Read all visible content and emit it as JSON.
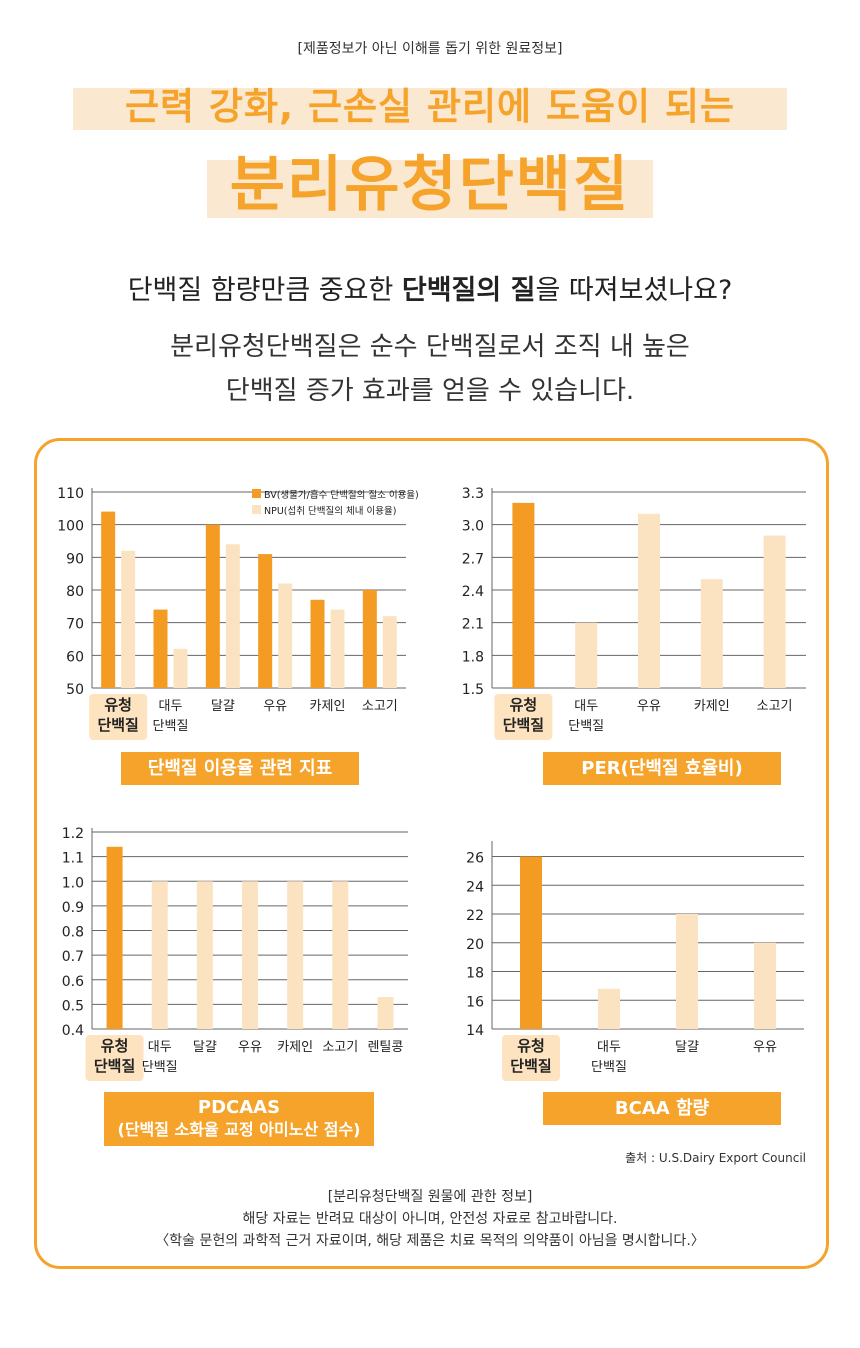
{
  "notice": "[제품정보가 아닌 이해를 돕기 위한 원료정보]",
  "title_line1": "근력 강화, 근손실 관리에 도움이 되는",
  "title_line2": "분리유청단백질",
  "question_pre": "단백질 함량만큼 중요한 ",
  "question_bold": "단백질의 질",
  "question_post": "을 따져보셨나요?",
  "desc_line1": "분리유청단백질은 순수 단백질로서 조직 내 높은",
  "desc_line2": "단백질 증가 효과를 얻을 수 있습니다.",
  "colors": {
    "accent": "#f5a32a",
    "bar_dark": "#f39b22",
    "bar_light": "#fbe3c2",
    "highlight": "#fde3bf",
    "grid": "#666666"
  },
  "source": "출처 : U.S.Dairy Export Council",
  "footer": {
    "line1": "[분리유청단백질 원물에 관한 정보]",
    "line2": "해당 자료는 반려묘 대상이 아니며, 안전성 자료로 참고바랍니다.",
    "line3": "〈학술 문헌의 과학적 근거 자료이며, 해당 제품은 치료 목적의 의약품이 아님을 명시합니다.〉"
  },
  "chart_data": [
    {
      "type": "bar",
      "title": "단백질 이용율 관련 지표",
      "categories": [
        [
          "유청",
          "단백질"
        ],
        [
          "대두",
          "단백질"
        ],
        [
          "달걀"
        ],
        [
          "우유"
        ],
        [
          "카제인"
        ],
        [
          "소고기"
        ]
      ],
      "series": [
        {
          "name": "BV(생물가/흡수 단백질의 질소 이용율)",
          "values": [
            104,
            74,
            100,
            91,
            77,
            80
          ]
        },
        {
          "name": "NPU(섭취 단백질의 체내 이용율)",
          "values": [
            92,
            62,
            94,
            82,
            74,
            72
          ]
        }
      ],
      "ylim": [
        50,
        110
      ],
      "yticks": [
        "110",
        "100",
        "90",
        "80",
        "70",
        "60",
        "50"
      ],
      "ytick_values": [
        110,
        100,
        90,
        80,
        70,
        60,
        50
      ],
      "legend": "top-right",
      "highlight_index": 0
    },
    {
      "type": "bar",
      "title": "PER(단백질 효율비)",
      "categories": [
        [
          "유청",
          "단백질"
        ],
        [
          "대두",
          "단백질"
        ],
        [
          "우유"
        ],
        [
          "카제인"
        ],
        [
          "소고기"
        ]
      ],
      "values": [
        3.2,
        2.1,
        3.1,
        2.5,
        2.9
      ],
      "ylim": [
        1.5,
        3.3
      ],
      "yticks": [
        "3.3",
        "3.0",
        "2.7",
        "2.4",
        "2.1",
        "1.8",
        "1.5"
      ],
      "ytick_values": [
        3.3,
        3.0,
        2.7,
        2.4,
        2.1,
        1.8,
        1.5
      ],
      "highlight_index": 0
    },
    {
      "type": "bar",
      "title": "PDCAAS",
      "subtitle": "(단백질 소화율 교정 아미노산 점수)",
      "categories": [
        [
          "유청",
          "단백질"
        ],
        [
          "대두",
          "단백질"
        ],
        [
          "달걀"
        ],
        [
          "우유"
        ],
        [
          "카제인"
        ],
        [
          "소고기"
        ],
        [
          "렌틸콩"
        ]
      ],
      "values": [
        1.14,
        1.0,
        1.0,
        1.0,
        1.0,
        1.0,
        0.53
      ],
      "ylim": [
        0.4,
        1.2
      ],
      "yticks": [
        "1.2",
        "1.1",
        "1.0",
        "0.9",
        "0.8",
        "0.7",
        "0.6",
        "0.5",
        "0.4"
      ],
      "ytick_values": [
        1.2,
        1.1,
        1.0,
        0.9,
        0.8,
        0.7,
        0.6,
        0.5,
        0.4
      ],
      "highlight_index": 0
    },
    {
      "type": "bar",
      "title": "BCAA 함량",
      "categories": [
        [
          "유청",
          "단백질"
        ],
        [
          "대두",
          "단백질"
        ],
        [
          "달걀"
        ],
        [
          "우유"
        ]
      ],
      "values": [
        26,
        16.8,
        22,
        20
      ],
      "ylim": [
        14,
        26.8
      ],
      "yticks": [
        "26",
        "24",
        "22",
        "20",
        "18",
        "16",
        "14"
      ],
      "ytick_values": [
        26,
        24,
        22,
        20,
        18,
        16,
        14
      ],
      "highlight_index": 0
    }
  ]
}
